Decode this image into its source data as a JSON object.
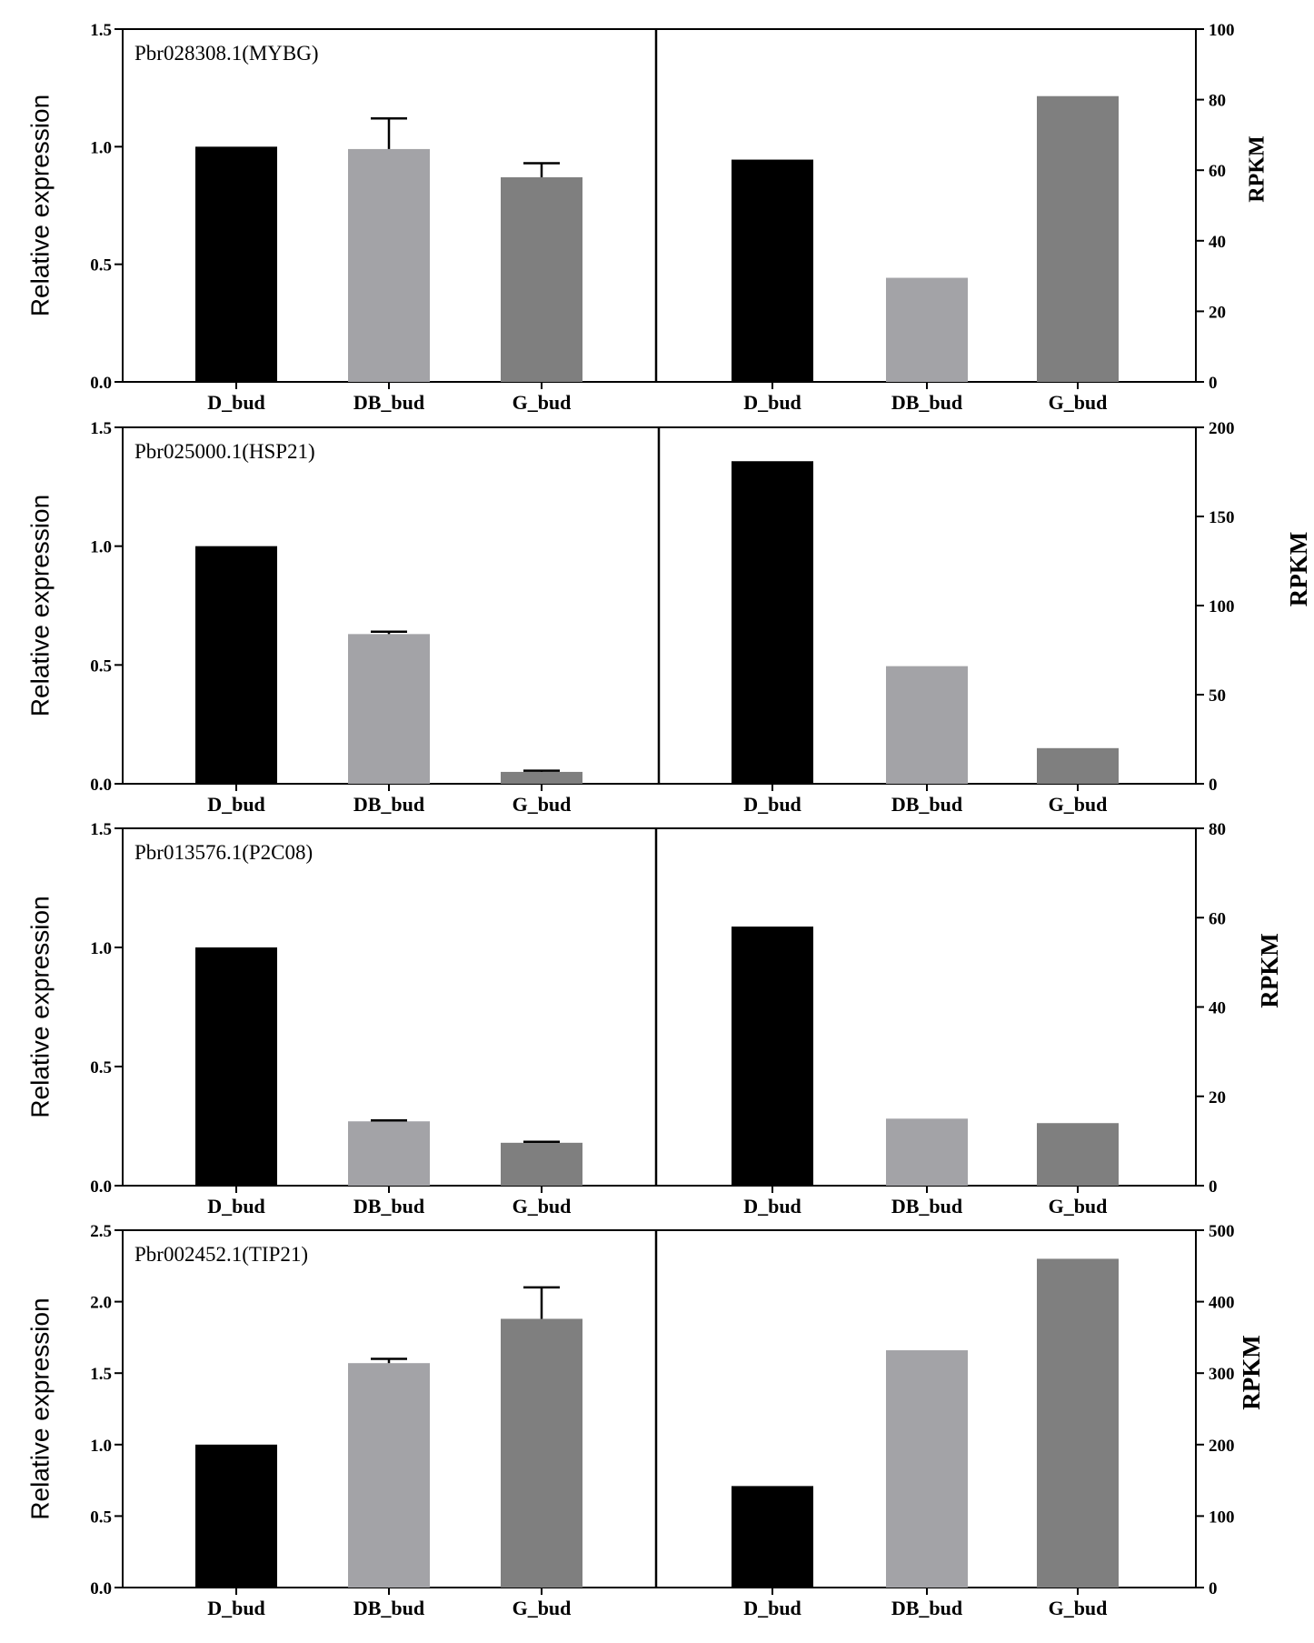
{
  "colors": {
    "D_bud": "#000000",
    "DB_bud": "#a3a3a7",
    "G_bud": "#7f7f7f",
    "axis": "#000000",
    "background": "#ffffff"
  },
  "chart_data": [
    {
      "type": "bar",
      "title": "Pbr028308.1(MYBG)",
      "categories": [
        "D_bud",
        "DB_bud",
        "G_bud"
      ],
      "left": {
        "ylabel": "Relative expression",
        "ylim": [
          0,
          1.5
        ],
        "ticks": [
          "0.0",
          "0.5",
          "1.0",
          "1.5"
        ],
        "values": [
          1.0,
          0.99,
          0.87
        ],
        "errors": [
          0,
          0.13,
          0.06
        ]
      },
      "right": {
        "ylabel": "RPKM",
        "ylim": [
          0,
          100
        ],
        "ticks": [
          "0",
          "20",
          "40",
          "60",
          "80",
          "100"
        ],
        "values": [
          63,
          29.5,
          81
        ]
      }
    },
    {
      "type": "bar",
      "title": "Pbr025000.1(HSP21)",
      "categories": [
        "D_bud",
        "DB_bud",
        "G_bud"
      ],
      "left": {
        "ylabel": "Relative expression",
        "ylim": [
          0,
          1.5
        ],
        "ticks": [
          "0.0",
          "0.5",
          "1.0",
          "1.5"
        ],
        "values": [
          1.0,
          0.63,
          0.05
        ],
        "errors": [
          0,
          0.01,
          0.005
        ]
      },
      "right": {
        "ylabel": "RPKM",
        "ylim": [
          0,
          200
        ],
        "ticks": [
          "0",
          "50",
          "100",
          "150",
          "200"
        ],
        "values": [
          181,
          66,
          20
        ]
      }
    },
    {
      "type": "bar",
      "title": "Pbr013576.1(P2C08)",
      "categories": [
        "D_bud",
        "DB_bud",
        "G_bud"
      ],
      "left": {
        "ylabel": "Relative expression",
        "ylim": [
          0,
          1.5
        ],
        "ticks": [
          "0.0",
          "0.5",
          "1.0",
          "1.5"
        ],
        "values": [
          1.0,
          0.27,
          0.18
        ],
        "errors": [
          0,
          0.004,
          0.004
        ]
      },
      "right": {
        "ylabel": "RPKM",
        "ylim": [
          0,
          80
        ],
        "ticks": [
          "0",
          "20",
          "40",
          "60",
          "80"
        ],
        "values": [
          58,
          15,
          14
        ]
      }
    },
    {
      "type": "bar",
      "title": "Pbr002452.1(TIP21)",
      "categories": [
        "D_bud",
        "DB_bud",
        "G_bud"
      ],
      "left": {
        "ylabel": "Relative expression",
        "ylim": [
          0,
          2.5
        ],
        "ticks": [
          "0.0",
          "0.5",
          "1.0",
          "1.5",
          "2.0",
          "2.5"
        ],
        "values": [
          1.0,
          1.57,
          1.88
        ],
        "errors": [
          0,
          0.03,
          0.22
        ]
      },
      "right": {
        "ylabel": "RPKM",
        "ylim": [
          0,
          500
        ],
        "ticks": [
          "0",
          "100",
          "200",
          "300",
          "400",
          "500"
        ],
        "values": [
          142,
          332,
          460
        ]
      }
    }
  ]
}
